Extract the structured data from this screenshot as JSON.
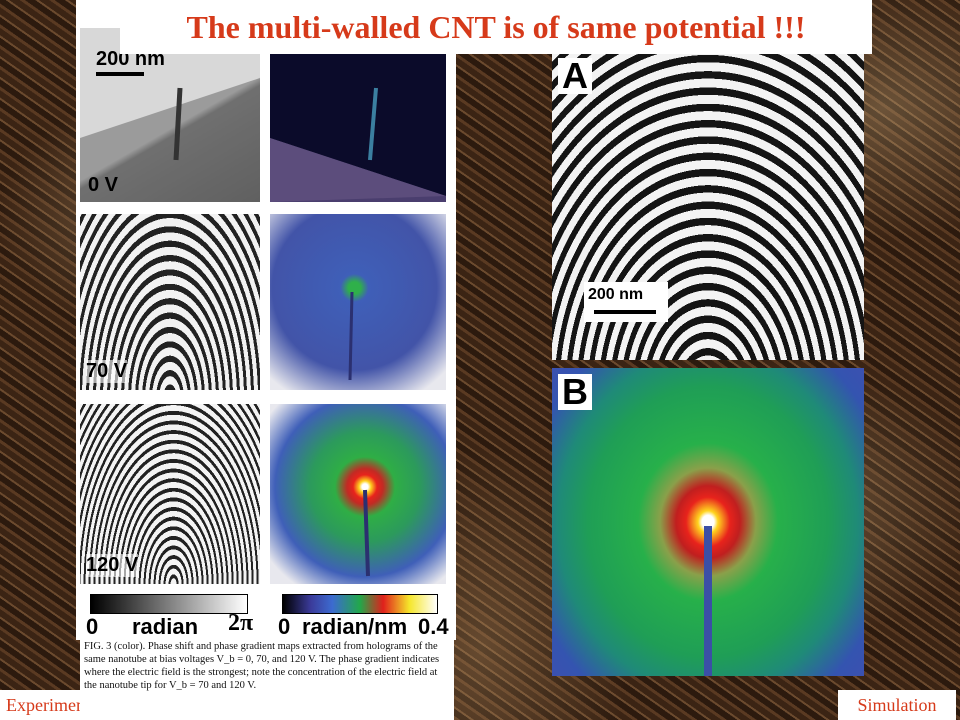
{
  "title": "The multi-walled  CNT is of same potential  !!!",
  "left_figure": {
    "scale_bar": "200 nm",
    "row_labels": [
      "0 V",
      "70 V",
      "120 V"
    ],
    "colorbar_left": {
      "start": "0",
      "label": "radian",
      "end": "2π"
    },
    "colorbar_right": {
      "start": "0",
      "label": "radian/nm",
      "end": "0.4"
    }
  },
  "caption": "FIG. 3 (color).   Phase shift and phase gradient maps extracted from holograms of the same nanotube at bias voltages V_b = 0, 70, and 120 V.  The phase gradient indicates where the electric field is the strongest; note the concentration of the electric field at the nanotube tip for V_b = 70 and 120 V.",
  "right_figure": {
    "panel_a_label": "A",
    "panel_b_label": "B",
    "scale_bar": "200 nm"
  },
  "bottom_left_tag": "Experiment",
  "bottom_right_tag": "Simulation"
}
